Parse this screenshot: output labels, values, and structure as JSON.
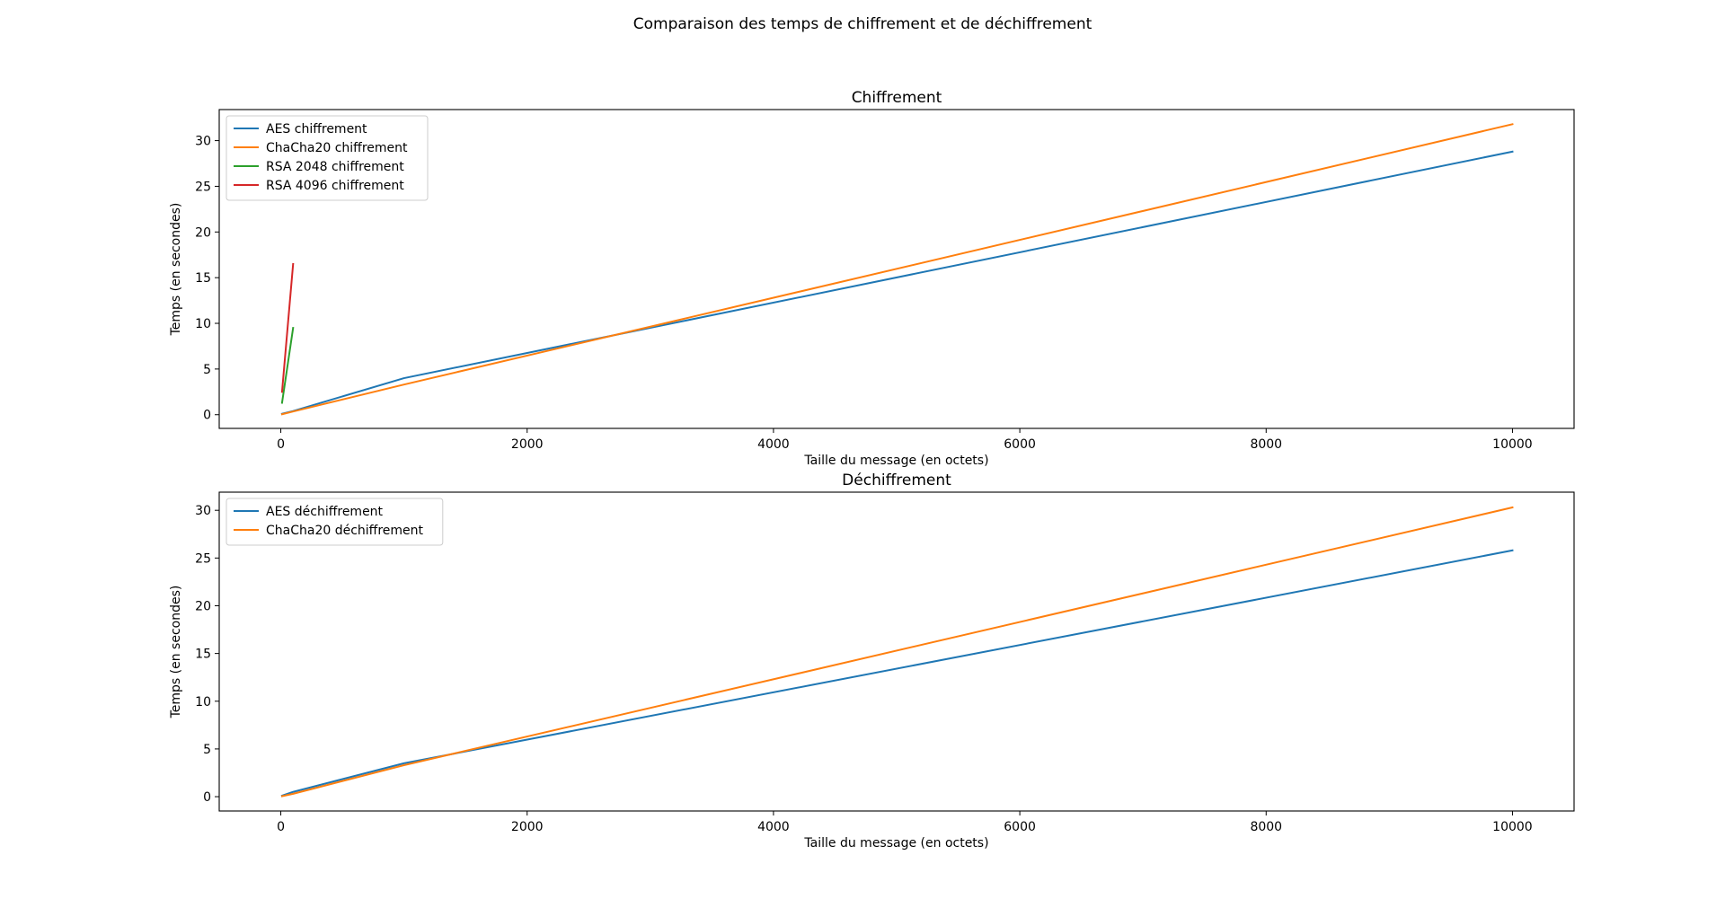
{
  "figure": {
    "suptitle": "Comparaison des temps de chiffrement et de déchiffrement"
  },
  "colors": {
    "blue": "#1f77b4",
    "orange": "#ff7f0e",
    "green": "#2ca02c",
    "red": "#d62728"
  },
  "chart_data": [
    {
      "type": "line",
      "title": "Chiffrement",
      "xlabel": "Taille du message (en octets)",
      "ylabel": "Temps (en secondes)",
      "xlim": [
        -500,
        10500
      ],
      "ylim": [
        -1.5,
        33.4
      ],
      "xticks": [
        0,
        2000,
        4000,
        6000,
        8000,
        10000
      ],
      "yticks": [
        0,
        5,
        10,
        15,
        20,
        25,
        30
      ],
      "grid": false,
      "legend_position": "upper-left",
      "series": [
        {
          "name": "AES chiffrement",
          "color": "#1f77b4",
          "x": [
            10,
            100,
            1000,
            10000
          ],
          "y": [
            0.1,
            0.4,
            4.0,
            28.8
          ]
        },
        {
          "name": "ChaCha20 chiffrement",
          "color": "#ff7f0e",
          "x": [
            10,
            100,
            1000,
            10000
          ],
          "y": [
            0.05,
            0.35,
            3.3,
            31.8
          ]
        },
        {
          "name": "RSA 2048 chiffrement",
          "color": "#2ca02c",
          "x": [
            10,
            100
          ],
          "y": [
            1.3,
            9.5
          ]
        },
        {
          "name": "RSA 4096 chiffrement",
          "color": "#d62728",
          "x": [
            10,
            100
          ],
          "y": [
            2.5,
            16.5
          ]
        }
      ]
    },
    {
      "type": "line",
      "title": "Déchiffrement",
      "xlabel": "Taille du message (en octets)",
      "ylabel": "Temps (en secondes)",
      "xlim": [
        -500,
        10500
      ],
      "ylim": [
        -1.5,
        31.9
      ],
      "xticks": [
        0,
        2000,
        4000,
        6000,
        8000,
        10000
      ],
      "yticks": [
        0,
        5,
        10,
        15,
        20,
        25,
        30
      ],
      "grid": false,
      "legend_position": "upper-left",
      "series": [
        {
          "name": "AES déchiffrement",
          "color": "#1f77b4",
          "x": [
            10,
            100,
            1000,
            10000
          ],
          "y": [
            0.1,
            0.5,
            3.5,
            25.8
          ]
        },
        {
          "name": "ChaCha20 déchiffrement",
          "color": "#ff7f0e",
          "x": [
            10,
            100,
            1000,
            10000
          ],
          "y": [
            0.05,
            0.3,
            3.3,
            30.3
          ]
        }
      ]
    }
  ]
}
